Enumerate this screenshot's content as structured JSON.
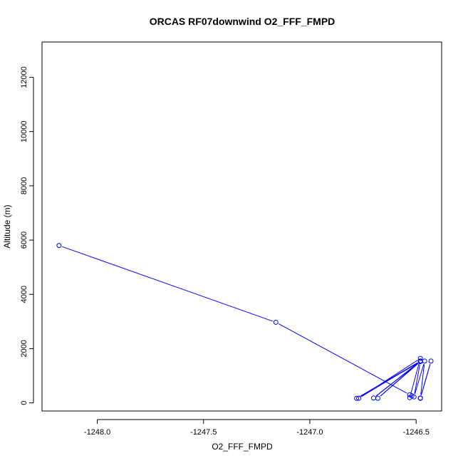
{
  "chart_data": {
    "type": "scatter",
    "title": "ORCAS RF07downwind O2_FFF_FMPD",
    "xlabel": "O2_FFF_FMPD",
    "ylabel": "Altitude (m)",
    "xlim": [
      -1248.26,
      -1246.38
    ],
    "ylim": [
      -300,
      13300
    ],
    "xticks": [
      -1248.0,
      -1247.5,
      -1247.0,
      -1246.5
    ],
    "xtick_labels": [
      "-1248.0",
      "-1247.5",
      "-1247.0",
      "-1246.5"
    ],
    "yticks": [
      0,
      2000,
      4000,
      6000,
      8000,
      10000,
      12000
    ],
    "ytick_labels": [
      "0",
      "2000",
      "4000",
      "6000",
      "8000",
      "10000",
      "12000"
    ],
    "grid": false,
    "legend": "none",
    "series": [
      {
        "color": "#0000ff",
        "marker": "open-circle",
        "line": true,
        "points": [
          {
            "x": -1248.18,
            "y": 5800
          },
          {
            "x": -1247.16,
            "y": 2970
          },
          {
            "x": -1246.53,
            "y": 300
          },
          {
            "x": -1246.52,
            "y": 260
          },
          {
            "x": -1246.53,
            "y": 190
          },
          {
            "x": -1246.48,
            "y": 1640
          },
          {
            "x": -1246.77,
            "y": 170
          },
          {
            "x": -1246.48,
            "y": 1540
          },
          {
            "x": -1246.78,
            "y": 165
          },
          {
            "x": -1246.48,
            "y": 1520
          },
          {
            "x": -1246.68,
            "y": 170
          },
          {
            "x": -1246.48,
            "y": 1540
          },
          {
            "x": -1246.7,
            "y": 180
          },
          {
            "x": -1246.48,
            "y": 1530
          },
          {
            "x": -1246.51,
            "y": 220
          },
          {
            "x": -1246.46,
            "y": 1540
          },
          {
            "x": -1246.48,
            "y": 180
          },
          {
            "x": -1246.43,
            "y": 1540
          },
          {
            "x": -1246.48,
            "y": 170
          }
        ]
      }
    ]
  }
}
